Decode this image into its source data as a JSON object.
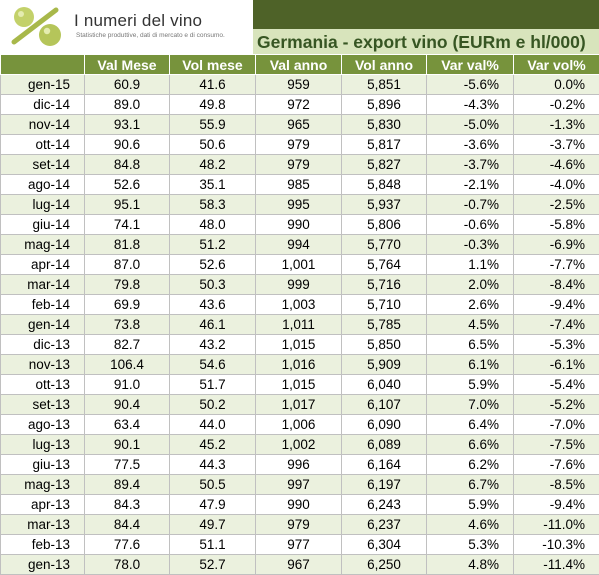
{
  "header": {
    "logo_title": "I numeri del vino",
    "logo_subtitle": "Statistiche produttive, dati di mercato e di consumo.",
    "title": "Germania - export vino (EURm e hl/000)"
  },
  "chart_data": {
    "type": "table",
    "columns": [
      "",
      "Val Mese",
      "Vol mese",
      "Val anno",
      "Vol anno",
      "Var val%",
      "Var vol%"
    ],
    "rows": [
      [
        "gen-15",
        "60.9",
        "41.6",
        "959",
        "5,851",
        "-5.6%",
        "0.0%"
      ],
      [
        "dic-14",
        "89.0",
        "49.8",
        "972",
        "5,896",
        "-4.3%",
        "-0.2%"
      ],
      [
        "nov-14",
        "93.1",
        "55.9",
        "965",
        "5,830",
        "-5.0%",
        "-1.3%"
      ],
      [
        "ott-14",
        "90.6",
        "50.6",
        "979",
        "5,817",
        "-3.6%",
        "-3.7%"
      ],
      [
        "set-14",
        "84.8",
        "48.2",
        "979",
        "5,827",
        "-3.7%",
        "-4.6%"
      ],
      [
        "ago-14",
        "52.6",
        "35.1",
        "985",
        "5,848",
        "-2.1%",
        "-4.0%"
      ],
      [
        "lug-14",
        "95.1",
        "58.3",
        "995",
        "5,937",
        "-0.7%",
        "-2.5%"
      ],
      [
        "giu-14",
        "74.1",
        "48.0",
        "990",
        "5,806",
        "-0.6%",
        "-5.8%"
      ],
      [
        "mag-14",
        "81.8",
        "51.2",
        "994",
        "5,770",
        "-0.3%",
        "-6.9%"
      ],
      [
        "apr-14",
        "87.0",
        "52.6",
        "1,001",
        "5,764",
        "1.1%",
        "-7.7%"
      ],
      [
        "mar-14",
        "79.8",
        "50.3",
        "999",
        "5,716",
        "2.0%",
        "-8.4%"
      ],
      [
        "feb-14",
        "69.9",
        "43.6",
        "1,003",
        "5,710",
        "2.6%",
        "-9.4%"
      ],
      [
        "gen-14",
        "73.8",
        "46.1",
        "1,011",
        "5,785",
        "4.5%",
        "-7.4%"
      ],
      [
        "dic-13",
        "82.7",
        "43.2",
        "1,015",
        "5,850",
        "6.5%",
        "-5.3%"
      ],
      [
        "nov-13",
        "106.4",
        "54.6",
        "1,016",
        "5,909",
        "6.1%",
        "-6.1%"
      ],
      [
        "ott-13",
        "91.0",
        "51.7",
        "1,015",
        "6,040",
        "5.9%",
        "-5.4%"
      ],
      [
        "set-13",
        "90.4",
        "50.2",
        "1,017",
        "6,107",
        "7.0%",
        "-5.2%"
      ],
      [
        "ago-13",
        "63.4",
        "44.0",
        "1,006",
        "6,090",
        "6.4%",
        "-7.0%"
      ],
      [
        "lug-13",
        "90.1",
        "45.2",
        "1,002",
        "6,089",
        "6.6%",
        "-7.5%"
      ],
      [
        "giu-13",
        "77.5",
        "44.3",
        "996",
        "6,164",
        "6.2%",
        "-7.6%"
      ],
      [
        "mag-13",
        "89.4",
        "50.5",
        "997",
        "6,197",
        "6.7%",
        "-8.5%"
      ],
      [
        "apr-13",
        "84.3",
        "47.9",
        "990",
        "6,243",
        "5.9%",
        "-9.4%"
      ],
      [
        "mar-13",
        "84.4",
        "49.7",
        "979",
        "6,237",
        "4.6%",
        "-11.0%"
      ],
      [
        "feb-13",
        "77.6",
        "51.1",
        "977",
        "6,304",
        "5.3%",
        "-10.3%"
      ],
      [
        "gen-13",
        "78.0",
        "52.7",
        "967",
        "6,250",
        "4.8%",
        "-11.4%"
      ]
    ]
  }
}
